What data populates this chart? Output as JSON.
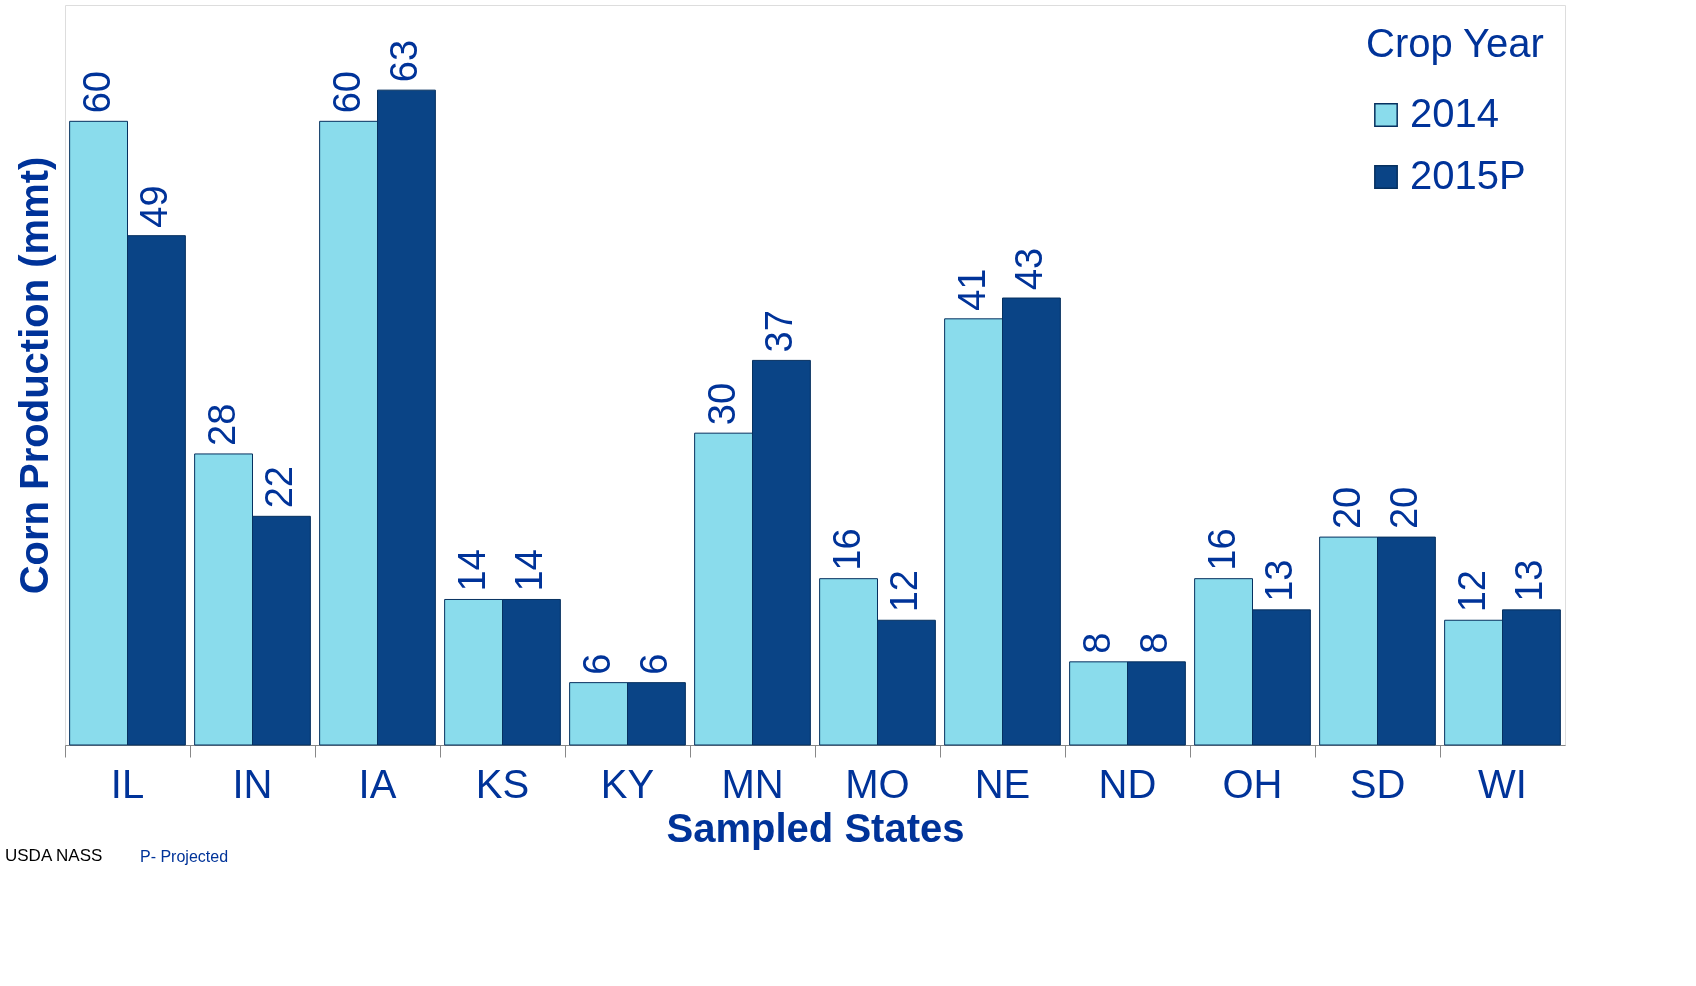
{
  "chart_data": {
    "type": "bar",
    "xlabel": "Sampled States",
    "ylabel": "Corn Production (mmt)",
    "legend_title": "Crop Year",
    "legend": "top right",
    "data_labels": true,
    "grid": false,
    "categories": [
      "IL",
      "IN",
      "IA",
      "KS",
      "KY",
      "MN",
      "MO",
      "NE",
      "ND",
      "OH",
      "SD",
      "WI"
    ],
    "series": [
      {
        "name": "2014",
        "color": "#8adcec",
        "values": [
          60,
          28,
          60,
          14,
          6,
          30,
          16,
          41,
          8,
          16,
          20,
          12
        ]
      },
      {
        "name": "2015P",
        "color": "#0a4486",
        "values": [
          49,
          22,
          63,
          14,
          6,
          37,
          12,
          43,
          8,
          13,
          20,
          13
        ]
      }
    ],
    "annotations": [
      "USDA NASS",
      "P- Projected"
    ]
  }
}
